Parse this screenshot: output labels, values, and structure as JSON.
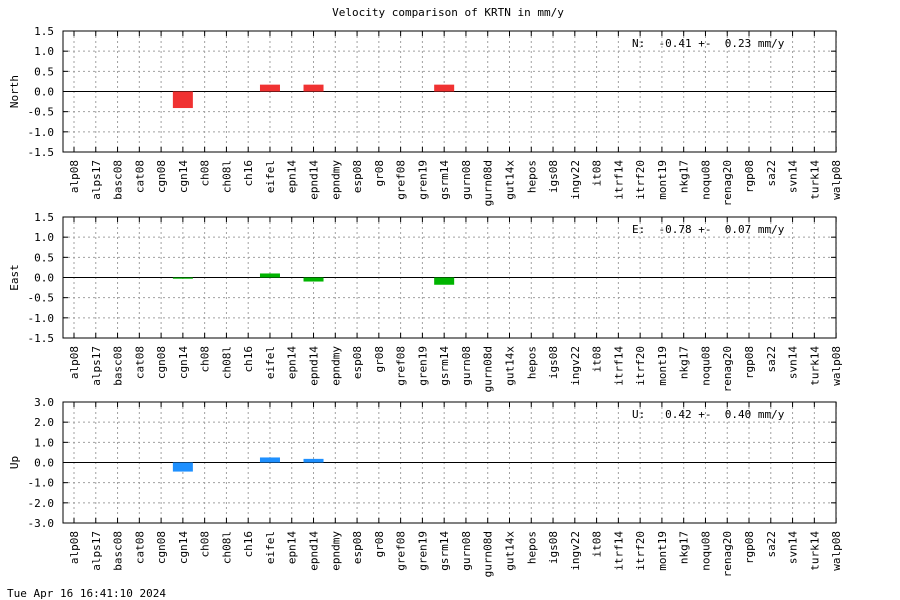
{
  "title": "Velocity comparison of KRTN in mm/y",
  "footer": "Tue Apr 16 16:41:10 2024",
  "chart_data": [
    {
      "type": "bar",
      "ylabel": "North",
      "ylim": [
        -1.5,
        1.5
      ],
      "yticks": [
        "1.5",
        "1.0",
        "0.5",
        "0.0",
        "-0.5",
        "-1.0",
        "-1.5"
      ],
      "ytick_values": [
        1.5,
        1.0,
        0.5,
        0.0,
        -0.5,
        -1.0,
        -1.5
      ],
      "annotation": "N:  -0.41 +-  0.23 mm/y",
      "color": "#f03232",
      "grid": true,
      "categories": [
        "alp08",
        "alps17",
        "basc08",
        "cat08",
        "cgn08",
        "cgn14",
        "ch08",
        "ch08l",
        "ch16",
        "eifel",
        "epn14",
        "epnd14",
        "epndmy",
        "esp08",
        "gr08",
        "gref08",
        "gren19",
        "gsrm14",
        "gurn08",
        "gurn08d",
        "gut14x",
        "hepos",
        "igs08",
        "ingv22",
        "it08",
        "itrf14",
        "itrf20",
        "mont19",
        "nkg17",
        "noqu08",
        "renag20",
        "rgp08",
        "sa22",
        "svn14",
        "turk14",
        "walp08"
      ],
      "values": [
        0,
        0,
        0,
        0,
        0,
        -0.41,
        0,
        0,
        0,
        0.17,
        0,
        0.17,
        0,
        0,
        0,
        0,
        0,
        0.17,
        0,
        0,
        0,
        0,
        0,
        0,
        0,
        0,
        0,
        0,
        0,
        0,
        0,
        0,
        0,
        0,
        0,
        0
      ]
    },
    {
      "type": "bar",
      "ylabel": "East",
      "ylim": [
        -1.5,
        1.5
      ],
      "yticks": [
        "1.5",
        "1.0",
        "0.5",
        "0.0",
        "-0.5",
        "-1.0",
        "-1.5"
      ],
      "ytick_values": [
        1.5,
        1.0,
        0.5,
        0.0,
        -0.5,
        -1.0,
        -1.5
      ],
      "annotation": "E:  -0.78 +-  0.07 mm/y",
      "color": "#00b400",
      "grid": true,
      "categories": [
        "alp08",
        "alps17",
        "basc08",
        "cat08",
        "cgn08",
        "cgn14",
        "ch08",
        "ch08l",
        "ch16",
        "eifel",
        "epn14",
        "epnd14",
        "epndmy",
        "esp08",
        "gr08",
        "gref08",
        "gren19",
        "gsrm14",
        "gurn08",
        "gurn08d",
        "gut14x",
        "hepos",
        "igs08",
        "ingv22",
        "it08",
        "itrf14",
        "itrf20",
        "mont19",
        "nkg17",
        "noqu08",
        "renag20",
        "rgp08",
        "sa22",
        "svn14",
        "turk14",
        "walp08"
      ],
      "values": [
        0,
        0,
        0,
        0,
        0,
        -0.03,
        0,
        0,
        0,
        0.1,
        0,
        -0.1,
        0,
        0,
        0,
        0,
        0,
        -0.18,
        0,
        0,
        0,
        0,
        0,
        0,
        0,
        0,
        0,
        0,
        0,
        0,
        0,
        0,
        0,
        0,
        0,
        0
      ]
    },
    {
      "type": "bar",
      "ylabel": "Up",
      "ylim": [
        -3.0,
        3.0
      ],
      "yticks": [
        "3.0",
        "2.0",
        "1.0",
        "0.0",
        "-1.0",
        "-2.0",
        "-3.0"
      ],
      "ytick_values": [
        3.0,
        2.0,
        1.0,
        0.0,
        -1.0,
        -2.0,
        -3.0
      ],
      "annotation": "U:   0.42 +-  0.40 mm/y",
      "color": "#1e90ff",
      "grid": true,
      "categories": [
        "alp08",
        "alps17",
        "basc08",
        "cat08",
        "cgn08",
        "cgn14",
        "ch08",
        "ch08l",
        "ch16",
        "eifel",
        "epn14",
        "epnd14",
        "epndmy",
        "esp08",
        "gr08",
        "gref08",
        "gren19",
        "gsrm14",
        "gurn08",
        "gurn08d",
        "gut14x",
        "hepos",
        "igs08",
        "ingv22",
        "it08",
        "itrf14",
        "itrf20",
        "mont19",
        "nkg17",
        "noqu08",
        "renag20",
        "rgp08",
        "sa22",
        "svn14",
        "turk14",
        "walp08"
      ],
      "values": [
        0,
        0,
        0,
        0,
        0,
        -0.45,
        0,
        0,
        0,
        0.25,
        0,
        0.18,
        0,
        0,
        0,
        0,
        0,
        0,
        0,
        0,
        0,
        0,
        0,
        0,
        0,
        0,
        0,
        0,
        0,
        0,
        0,
        0,
        0,
        0,
        0,
        0
      ]
    }
  ]
}
